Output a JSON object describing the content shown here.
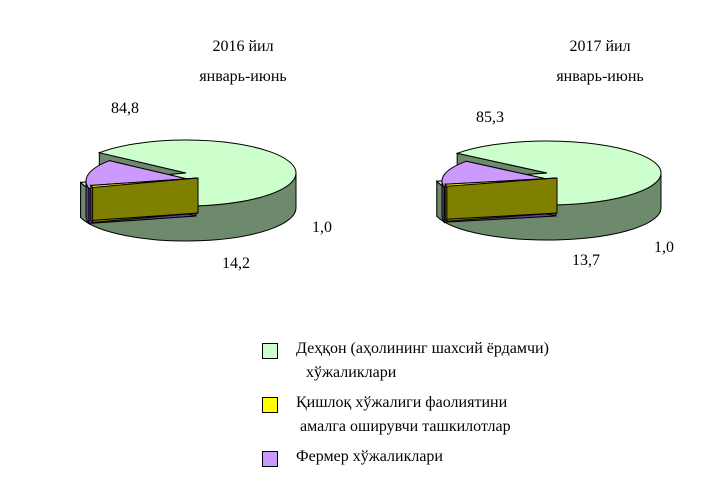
{
  "chart_data": [
    {
      "type": "pie",
      "title": "2016 йил",
      "subtitle": "январь-июнь",
      "categories": [
        "Деҳқон (аҳолининг шахсий ёрдамчи) хўжаликлари",
        "Қишлоқ хўжалиги фаолиятини амалга оширувчи ташкилотлар",
        "Фермер хўжаликлари"
      ],
      "values": [
        84.8,
        1.0,
        14.2
      ],
      "labels": [
        "84,8",
        "1,0",
        "14,2"
      ]
    },
    {
      "type": "pie",
      "title": "2017 йил",
      "subtitle": "январь-июнь",
      "categories": [
        "Деҳқон (аҳолининг шахсий ёрдамчи) хўжаликлари",
        "Қишлоқ хўжалиги фаолиятини амалга оширувчи ташкилотлар",
        "Фермер хўжаликлари"
      ],
      "values": [
        85.3,
        1.0,
        13.7
      ],
      "labels": [
        "85,3",
        "1,0",
        "13,7"
      ]
    }
  ],
  "legend": {
    "items": [
      {
        "line1": "Деҳқон (аҳолининг шахсий ёрдамчи)",
        "line2": "хўжаликлари",
        "color": "#ccffcc"
      },
      {
        "line1": "Қишлоқ хўжалиги фаолиятини",
        "line2": "амалга оширувчи ташкилотлар",
        "color": "#ffff00"
      },
      {
        "line1": "Фермер хўжаликлари",
        "line2": "",
        "color": "#cc99ff"
      }
    ]
  },
  "colors": {
    "dehkon": "#ccffcc",
    "dehkon_side": "#6d8a6d",
    "tashkilot": "#ffff00",
    "tashkilot_side": "#808000",
    "fermer": "#cc99ff",
    "fermer_side": "#5e3f85",
    "outline": "#000000"
  }
}
